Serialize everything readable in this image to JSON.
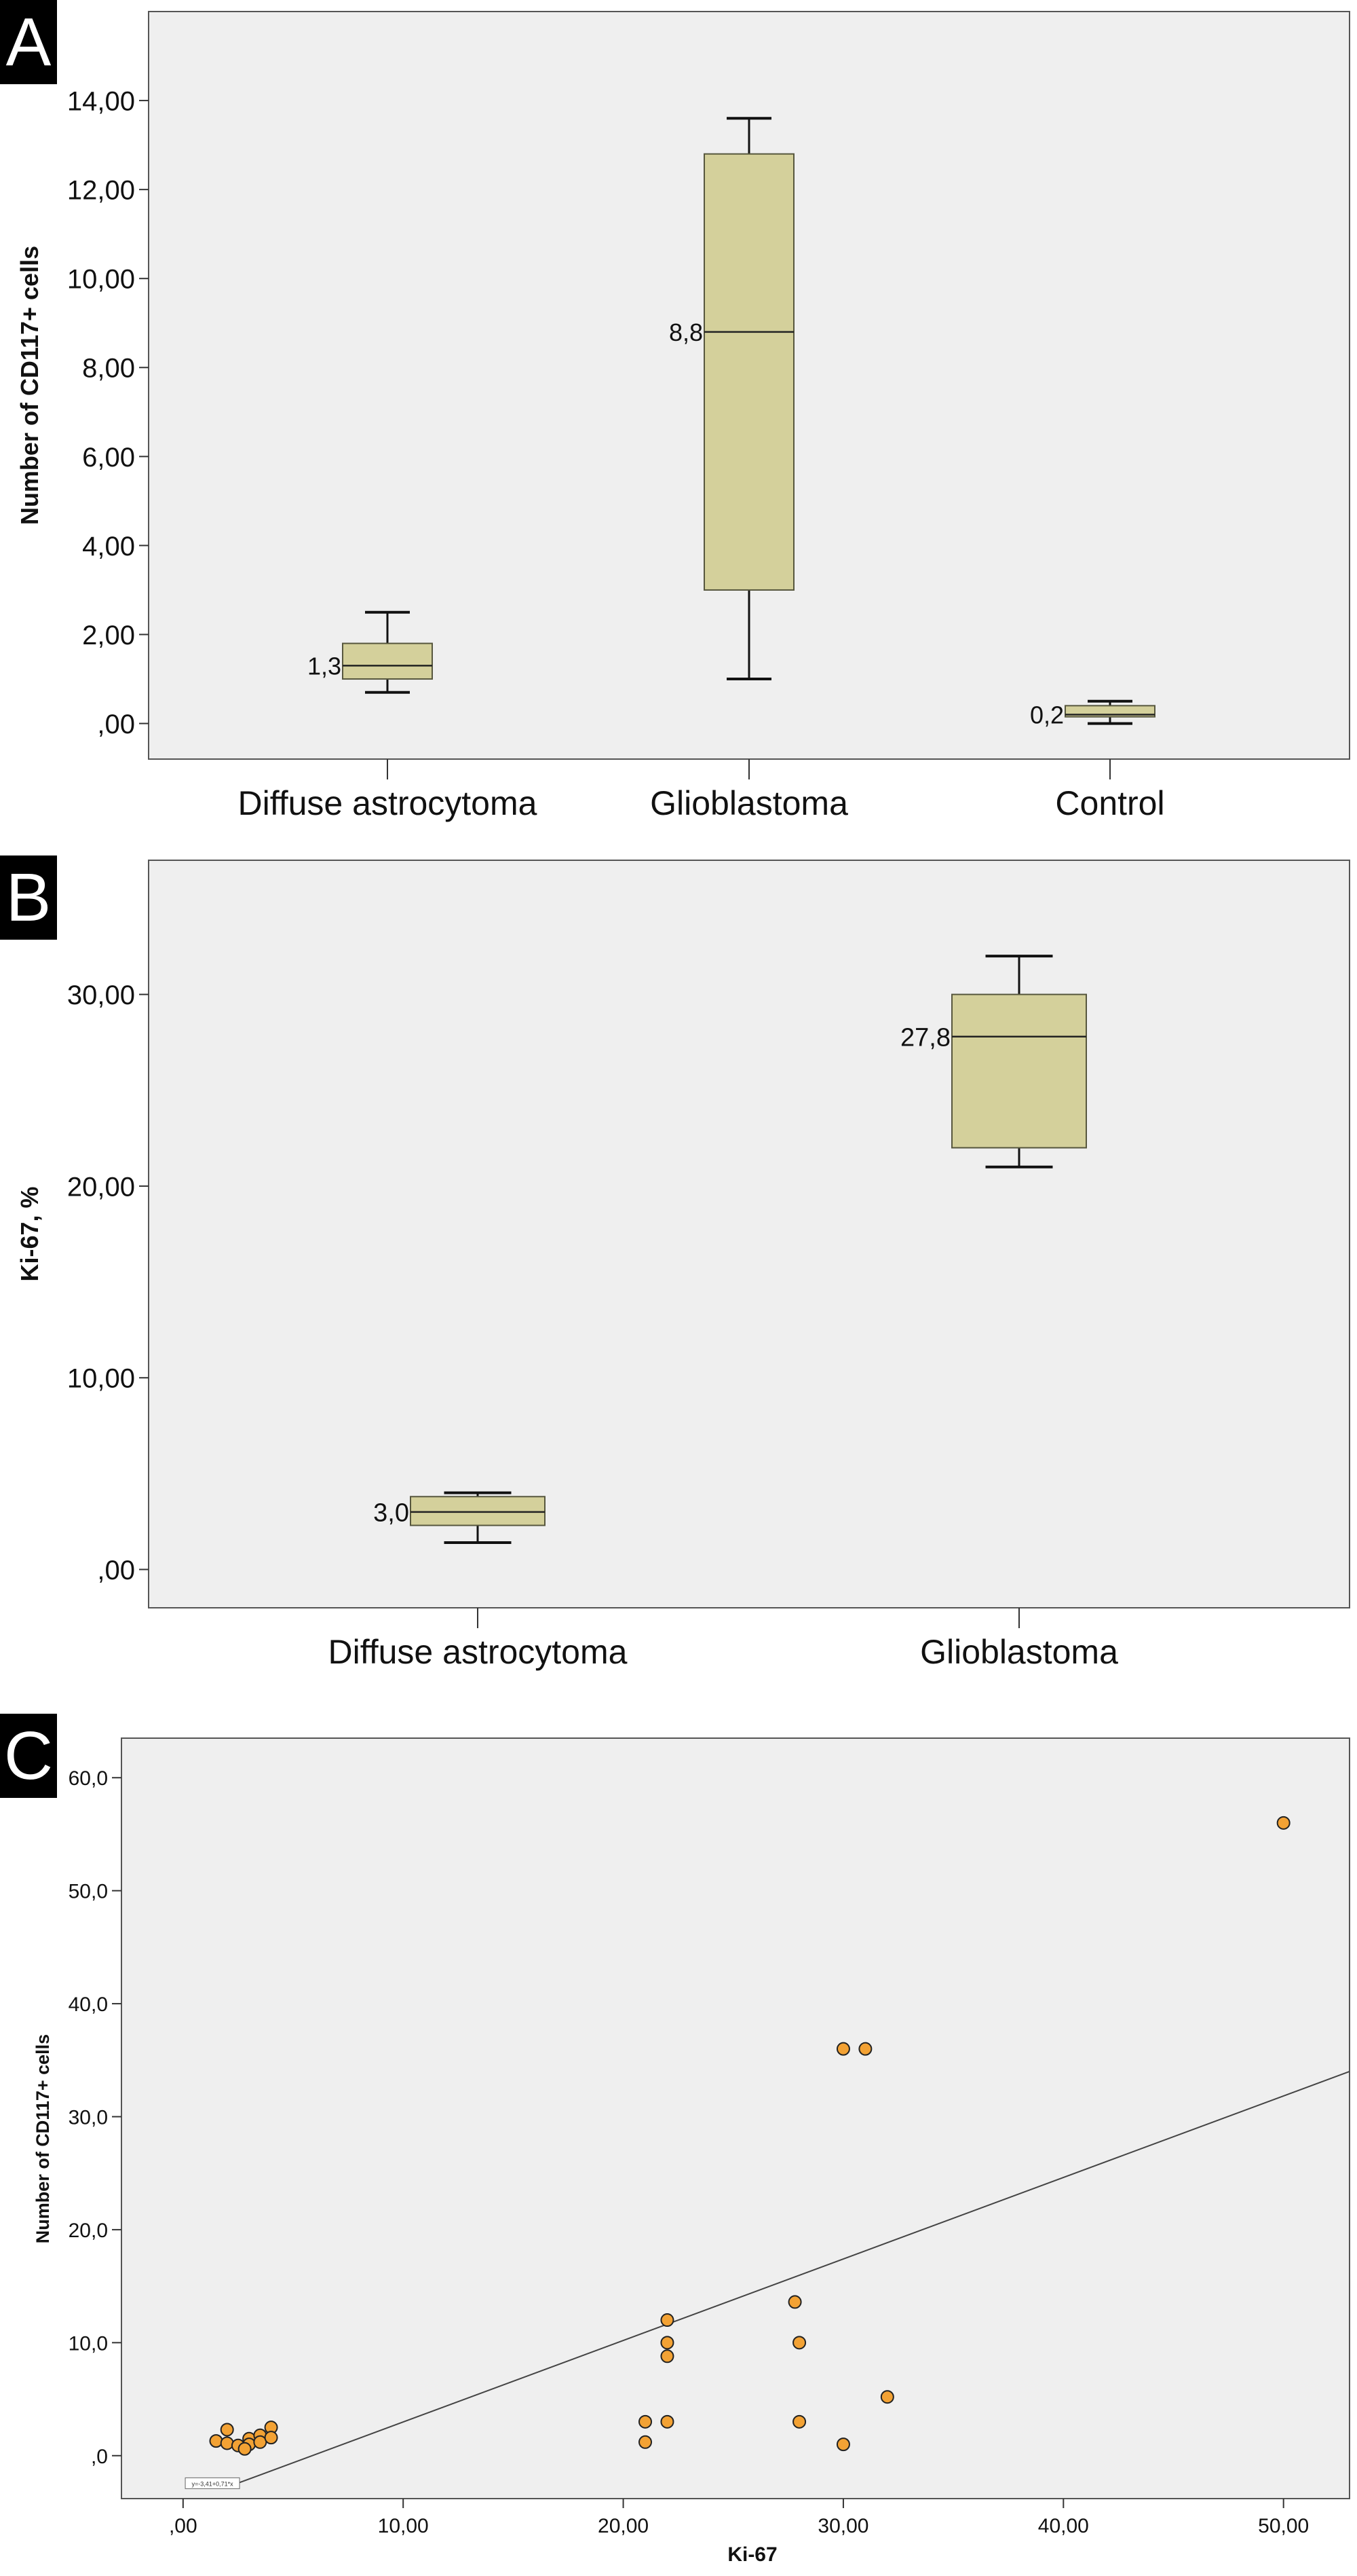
{
  "panels": {
    "A": {
      "letter": "A"
    },
    "B": {
      "letter": "B"
    },
    "C": {
      "letter": "C"
    }
  },
  "colors": {
    "plot_background": "#efefef",
    "box_fill": "#d4d09b",
    "box_stroke": "#57573e",
    "point_fill": "#f3a234",
    "point_stroke": "#222222",
    "fit_line": "#444444"
  },
  "chart_data": [
    {
      "id": "A",
      "type": "box",
      "title": "",
      "xlabel": "",
      "ylabel": "Number of CD117+ cells",
      "ylim": [
        -0.8,
        16.0
      ],
      "yticks": [
        0,
        2,
        4,
        6,
        8,
        10,
        12,
        14
      ],
      "ytick_labels": [
        ",00",
        "2,00",
        "4,00",
        "6,00",
        "8,00",
        "10,00",
        "12,00",
        "14,00"
      ],
      "grid": false,
      "categories": [
        "Diffuse astrocytoma",
        "Glioblastoma",
        "Control"
      ],
      "boxes": [
        {
          "category": "Diffuse astrocytoma",
          "whisker_low": 0.7,
          "q1": 1.0,
          "median": 1.3,
          "q3": 1.8,
          "whisker_high": 2.5,
          "median_label": "1,3"
        },
        {
          "category": "Glioblastoma",
          "whisker_low": 1.0,
          "q1": 3.0,
          "median": 8.8,
          "q3": 12.8,
          "whisker_high": 13.6,
          "median_label": "8,8"
        },
        {
          "category": "Control",
          "whisker_low": 0.0,
          "q1": 0.15,
          "median": 0.2,
          "q3": 0.4,
          "whisker_high": 0.5,
          "median_label": "0,2"
        }
      ]
    },
    {
      "id": "B",
      "type": "box",
      "title": "",
      "xlabel": "",
      "ylabel": "Ki-67, %",
      "ylim": [
        -2.0,
        37.0
      ],
      "yticks": [
        0,
        10,
        20,
        30
      ],
      "ytick_labels": [
        ",00",
        "10,00",
        "20,00",
        "30,00"
      ],
      "grid": false,
      "categories": [
        "Diffuse astrocytoma",
        "Glioblastoma"
      ],
      "boxes": [
        {
          "category": "Diffuse astrocytoma",
          "whisker_low": 1.4,
          "q1": 2.3,
          "median": 3.0,
          "q3": 3.8,
          "whisker_high": 4.0,
          "median_label": "3,0"
        },
        {
          "category": "Glioblastoma",
          "whisker_low": 21.0,
          "q1": 22.0,
          "median": 27.8,
          "q3": 30.0,
          "whisker_high": 32.0,
          "median_label": "27,8"
        }
      ]
    },
    {
      "id": "C",
      "type": "scatter",
      "title": "",
      "xlabel": "Ki-67",
      "ylabel": "Number of CD117+ cells",
      "xlim": [
        -2.8,
        53.0
      ],
      "ylim": [
        -3.8,
        63.5
      ],
      "xticks": [
        0,
        10,
        20,
        30,
        40,
        50
      ],
      "xtick_labels": [
        ",00",
        "10,00",
        "20,00",
        "30,00",
        "40,00",
        "50,00"
      ],
      "yticks": [
        0,
        10,
        20,
        30,
        40,
        50,
        60
      ],
      "ytick_labels": [
        ",0",
        "10,0",
        "20,0",
        "30,0",
        "40,0",
        "50,0",
        "60,0"
      ],
      "grid": false,
      "x": [
        1.5,
        2.0,
        2.0,
        2.5,
        3.0,
        3.0,
        3.5,
        3.5,
        4.0,
        4.0,
        2.8,
        21.0,
        21.0,
        22.0,
        22.0,
        22.0,
        22.0,
        27.8,
        28.0,
        28.0,
        30.0,
        30.0,
        31.0,
        32.0,
        50.0
      ],
      "y": [
        1.3,
        2.3,
        1.1,
        0.9,
        1.5,
        1.0,
        1.8,
        1.2,
        2.5,
        1.6,
        0.6,
        3.0,
        1.2,
        12.0,
        10.0,
        8.8,
        3.0,
        13.6,
        10.0,
        3.0,
        36.0,
        1.0,
        36.0,
        5.2,
        56.0
      ],
      "fit_line": {
        "x": [
          2.4,
          53.0
        ],
        "y": [
          -2.5,
          34.0
        ]
      },
      "fit_label": "y=-3,41+0,71*x"
    }
  ]
}
